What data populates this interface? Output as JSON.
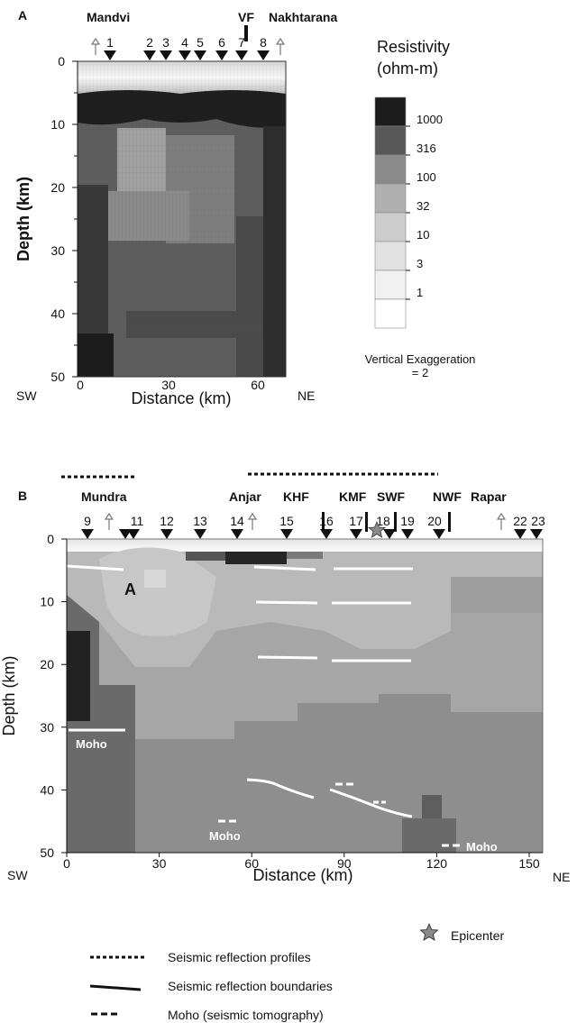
{
  "panel_a": {
    "letter": "A",
    "site_labels": {
      "left": "Mandvi",
      "fault": "VF",
      "right": "Nakhtarana"
    },
    "stations": [
      "1",
      "2",
      "3",
      "4",
      "5",
      "6",
      "7",
      "8"
    ],
    "y_axis": {
      "label": "Depth (km)",
      "ticks": [
        "0",
        "10",
        "20",
        "30",
        "40",
        "50"
      ]
    },
    "x_axis": {
      "label": "Distance (km)",
      "ticks": [
        "0",
        "30",
        "60"
      ],
      "left_end": "SW",
      "right_end": "NE"
    },
    "colorbar": {
      "title_line1": "Resistivity",
      "title_line2": "(ohm-m)",
      "levels": [
        "1000",
        "316",
        "100",
        "32",
        "10",
        "3",
        "1"
      ],
      "colors": [
        "#1c1c1c",
        "#575757",
        "#8a8a8a",
        "#b0b0b0",
        "#cdcdcd",
        "#e1e1e1",
        "#f1f1f1",
        "#ffffff"
      ]
    },
    "exaggeration_line1": "Vertical Exaggeration",
    "exaggeration_line2": "= 2"
  },
  "panel_b": {
    "letter": "B",
    "site_labels": {
      "mundra": "Mundra",
      "anjar": "Anjar",
      "khf": "KHF",
      "kmf": "KMF",
      "swf": "SWF",
      "nwf": "NWF",
      "rapar": "Rapar"
    },
    "stations": [
      "9",
      "11",
      "12",
      "13",
      "14",
      "15",
      "16",
      "17",
      "18",
      "19",
      "20",
      "22",
      "23"
    ],
    "anomaly_label": "A",
    "moho_labels": [
      "Moho",
      "Moho",
      "Moho"
    ],
    "y_axis": {
      "label": "Depth (km)",
      "ticks": [
        "0",
        "10",
        "20",
        "30",
        "40",
        "50"
      ]
    },
    "x_axis": {
      "label": "Distance (km)",
      "ticks": [
        "0",
        "30",
        "60",
        "90",
        "120",
        "150"
      ],
      "left_end": "SW",
      "right_end": "NE"
    }
  },
  "legend": {
    "epicenter": "Epicenter",
    "reflection_profiles": "Seismic reflection profiles",
    "reflection_boundaries": "Seismic reflection boundaries",
    "moho_tomography": "Moho (seismic tomography)"
  }
}
